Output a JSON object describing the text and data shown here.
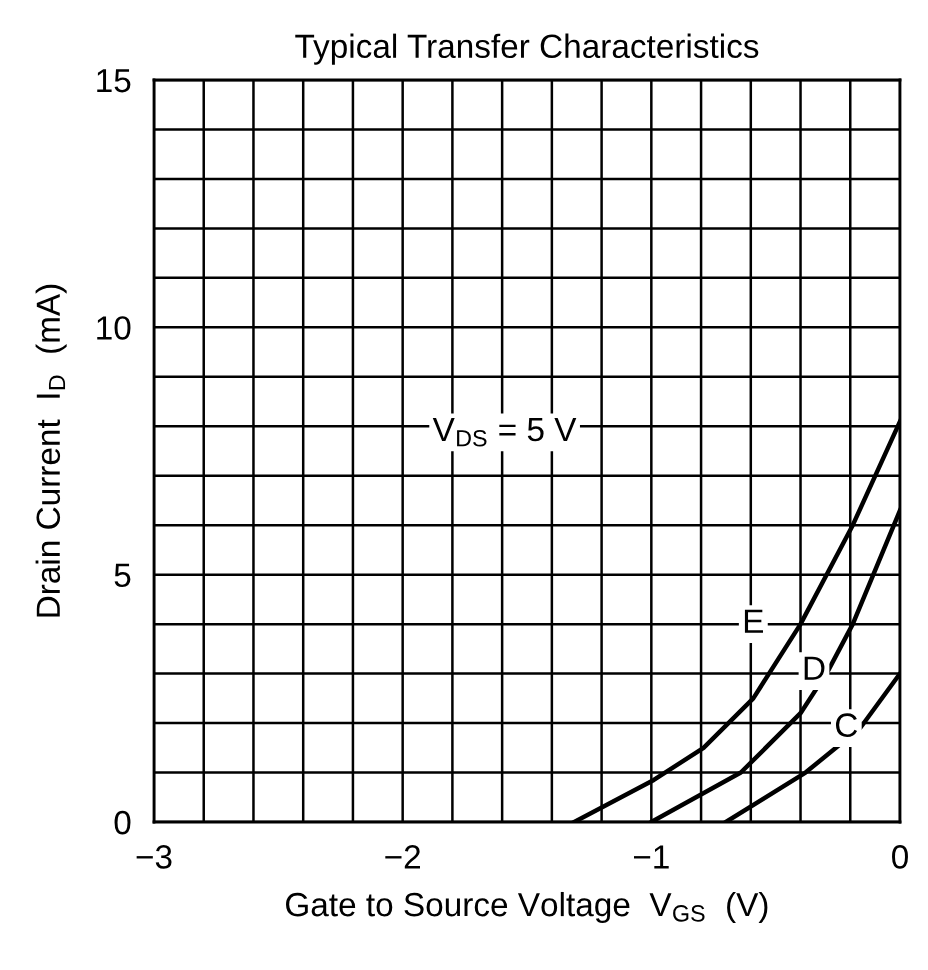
{
  "chart_data": {
    "type": "line",
    "title": "Typical Transfer Characteristics",
    "xlabel": "Gate to Source Voltage  V$_{GS}$  (V)",
    "ylabel": "Drain Current  I$_{D}$  (mA)",
    "series": [
      {
        "name": "E",
        "color": "#000000",
        "x": [
          -1.31,
          -0.99,
          -0.79,
          -0.59,
          -0.4,
          -0.19,
          0
        ],
        "values": [
          0,
          0.85,
          1.5,
          2.5,
          4,
          6,
          8.1
        ]
      },
      {
        "name": "D",
        "color": "#000000",
        "x": [
          -1.0,
          -0.64,
          -0.4,
          -0.29,
          -0.19,
          0
        ],
        "values": [
          0,
          1,
          2.2,
          3.05,
          4,
          6.3
        ]
      },
      {
        "name": "C",
        "color": "#000000",
        "x": [
          -0.7,
          -0.38,
          -0.16,
          0
        ],
        "values": [
          0,
          1,
          1.9,
          3
        ]
      }
    ],
    "annotations": [
      "V$_{DS}$ = 5 V"
    ],
    "xlim": [
      -3,
      0
    ],
    "ylim": [
      0,
      15
    ],
    "xticks": [
      {
        "value": -3,
        "label": "−3"
      },
      {
        "value": -2.8,
        "label": null
      },
      {
        "value": -2.6,
        "label": null
      },
      {
        "value": -2.4,
        "label": null
      },
      {
        "value": -2.2,
        "label": null
      },
      {
        "value": -2,
        "label": "−2"
      },
      {
        "value": -1.8,
        "label": null
      },
      {
        "value": -1.6,
        "label": null
      },
      {
        "value": -1.4,
        "label": null
      },
      {
        "value": -1.2,
        "label": null
      },
      {
        "value": -1,
        "label": "−1"
      },
      {
        "value": -0.8,
        "label": null
      },
      {
        "value": -0.6,
        "label": null
      },
      {
        "value": -0.4,
        "label": null
      },
      {
        "value": -0.2,
        "label": null
      },
      0
    ],
    "yticks": [
      0,
      {
        "value": 1,
        "label": null
      },
      {
        "value": 2,
        "label": null
      },
      {
        "value": 3,
        "label": null
      },
      {
        "value": 4,
        "label": null
      },
      5,
      {
        "value": 6,
        "label": null
      },
      {
        "value": 7,
        "label": null
      },
      {
        "value": 8,
        "label": null
      },
      {
        "value": 9,
        "label": null
      },
      10,
      {
        "value": 11,
        "label": null
      },
      {
        "value": 12,
        "label": null
      },
      {
        "value": 13,
        "label": null
      },
      {
        "value": 14,
        "label": null
      },
      15
    ],
    "grid": true,
    "line_style": "solid",
    "marker": "none",
    "legend": false
  }
}
